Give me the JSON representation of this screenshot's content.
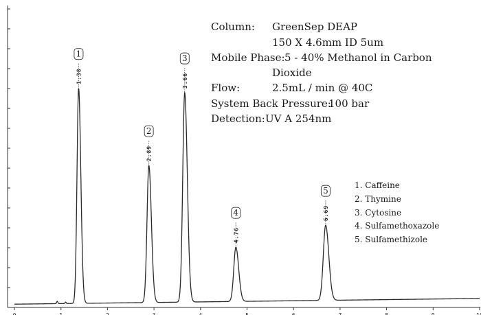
{
  "chart_data": {
    "type": "line",
    "title": "",
    "xlabel": "",
    "ylabel": "",
    "xlim": [
      0,
      10
    ],
    "x_ticks": [
      0,
      1,
      2,
      3,
      4,
      5,
      6,
      7,
      8,
      9,
      10
    ],
    "y_ticks": [
      0,
      1,
      2,
      3,
      4,
      5,
      6,
      7,
      8,
      9,
      10,
      11,
      12,
      13,
      14,
      15
    ],
    "ylim": [
      0,
      15
    ],
    "grid": false,
    "series": [
      {
        "values": "chromatogram trace"
      }
    ],
    "peaks": [
      {
        "number": "1",
        "retention_time": "1.38",
        "rt": 1.38,
        "height": 11.3,
        "width": 0.035
      },
      {
        "number": "2",
        "retention_time": "2.89",
        "rt": 2.89,
        "height": 7.2,
        "width": 0.04
      },
      {
        "number": "3",
        "retention_time": "3.66",
        "rt": 3.66,
        "height": 11.0,
        "width": 0.042
      },
      {
        "number": "4",
        "retention_time": "4.76",
        "rt": 4.76,
        "height": 2.85,
        "width": 0.045
      },
      {
        "number": "5",
        "retention_time": "6.69",
        "rt": 6.69,
        "height": 3.95,
        "width": 0.05
      }
    ],
    "baseline": 0.1,
    "annotations": {
      "conditions": [
        {
          "label": "Column:",
          "value": "GreenSep DEAP"
        },
        {
          "label": "",
          "value": "150 X 4.6mm ID 5um"
        },
        {
          "label": "Mobile Phase:",
          "value": "5 - 40% Methanol in Carbon"
        },
        {
          "label": "",
          "value": "Dioxide"
        },
        {
          "label": "Flow:",
          "value": "2.5mL / min @ 40C"
        },
        {
          "label": "System Back Pressure:",
          "value": "100 bar"
        },
        {
          "label": "Detection:",
          "value": "UV A 254nm"
        }
      ],
      "compounds": [
        "1. Caffeine",
        "2. Thymine",
        "3. Cytosine",
        "4. Sulfamethoxazole",
        "5. Sulfamethizole"
      ]
    }
  }
}
